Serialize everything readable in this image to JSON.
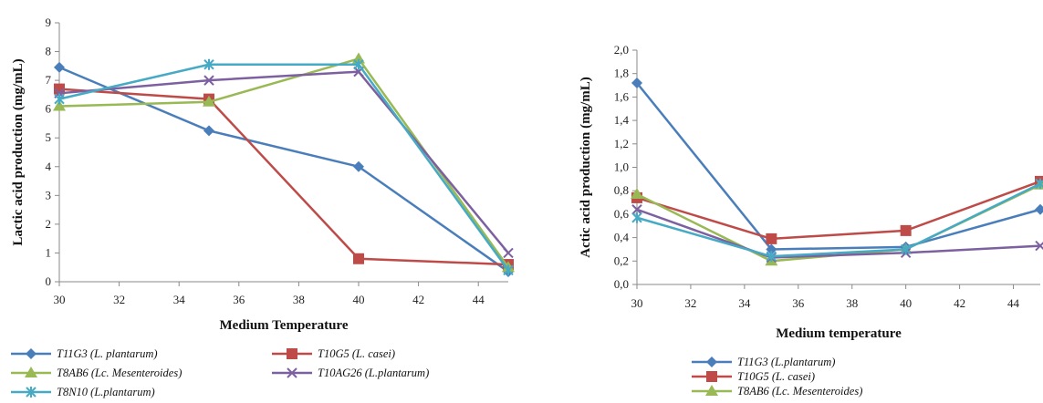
{
  "chart_data": [
    {
      "type": "line",
      "ylabel": "Lactic acid production (mg/mL)",
      "xlabel": "Medium Temperature",
      "x": [
        30,
        35,
        40,
        45
      ],
      "xlim": [
        30,
        45
      ],
      "ylim": [
        0,
        9
      ],
      "xticks": [
        "30",
        "32",
        "34",
        "36",
        "38",
        "40",
        "42",
        "44"
      ],
      "yticks": [
        "0",
        "1",
        "2",
        "3",
        "4",
        "5",
        "6",
        "7",
        "8",
        "9"
      ],
      "grid": false,
      "legend_position": "bottom",
      "series": [
        {
          "name": "T11G3 (L. plantarum)",
          "color": "#4a7ebb",
          "marker": "diamond",
          "values": [
            7.45,
            5.25,
            4.0,
            0.35
          ]
        },
        {
          "name": "T10G5 (L. casei)",
          "color": "#be4b48",
          "marker": "square",
          "values": [
            6.7,
            6.35,
            0.8,
            0.6
          ]
        },
        {
          "name": "T8AB6 (Lc. Mesenteroides)",
          "color": "#98b954",
          "marker": "triangle",
          "values": [
            6.1,
            6.25,
            7.75,
            0.5
          ]
        },
        {
          "name": "T10AG26 (L.plantarum)",
          "color": "#7d60a0",
          "marker": "x",
          "values": [
            6.55,
            7.0,
            7.3,
            1.0
          ]
        },
        {
          "name": "T8N10 (L.plantarum)",
          "color": "#46aac5",
          "marker": "star",
          "values": [
            6.35,
            7.55,
            7.55,
            0.4
          ]
        }
      ]
    },
    {
      "type": "line",
      "ylabel": "Actic acid production (mg/mL)",
      "xlabel": "Medium temperature",
      "x": [
        30,
        35,
        40,
        45
      ],
      "xlim": [
        30,
        45
      ],
      "ylim": [
        0,
        2.0
      ],
      "xticks": [
        "30",
        "32",
        "34",
        "36",
        "38",
        "40",
        "42",
        "44"
      ],
      "yticks": [
        "0,0",
        "0,2",
        "0,4",
        "0,6",
        "0,8",
        "1,0",
        "1,2",
        "1,4",
        "1,6",
        "1,8",
        "2,0"
      ],
      "grid": false,
      "legend_position": "bottom",
      "series": [
        {
          "name": "T11G3 (L.plantarum)",
          "color": "#4a7ebb",
          "marker": "diamond",
          "values": [
            1.72,
            0.3,
            0.32,
            0.64
          ]
        },
        {
          "name": "T10G5 (L. casei)",
          "color": "#be4b48",
          "marker": "square",
          "values": [
            0.74,
            0.39,
            0.46,
            0.88
          ]
        },
        {
          "name": "T8AB6 (Lc. Mesenteroides)",
          "color": "#98b954",
          "marker": "triangle",
          "values": [
            0.77,
            0.2,
            0.3,
            0.85
          ]
        },
        {
          "name": "",
          "color": "#7d60a0",
          "marker": "x",
          "values": [
            0.64,
            0.23,
            0.27,
            0.33
          ]
        },
        {
          "name": "",
          "color": "#46aac5",
          "marker": "star",
          "values": [
            0.57,
            0.24,
            0.3,
            0.86
          ]
        }
      ]
    }
  ]
}
